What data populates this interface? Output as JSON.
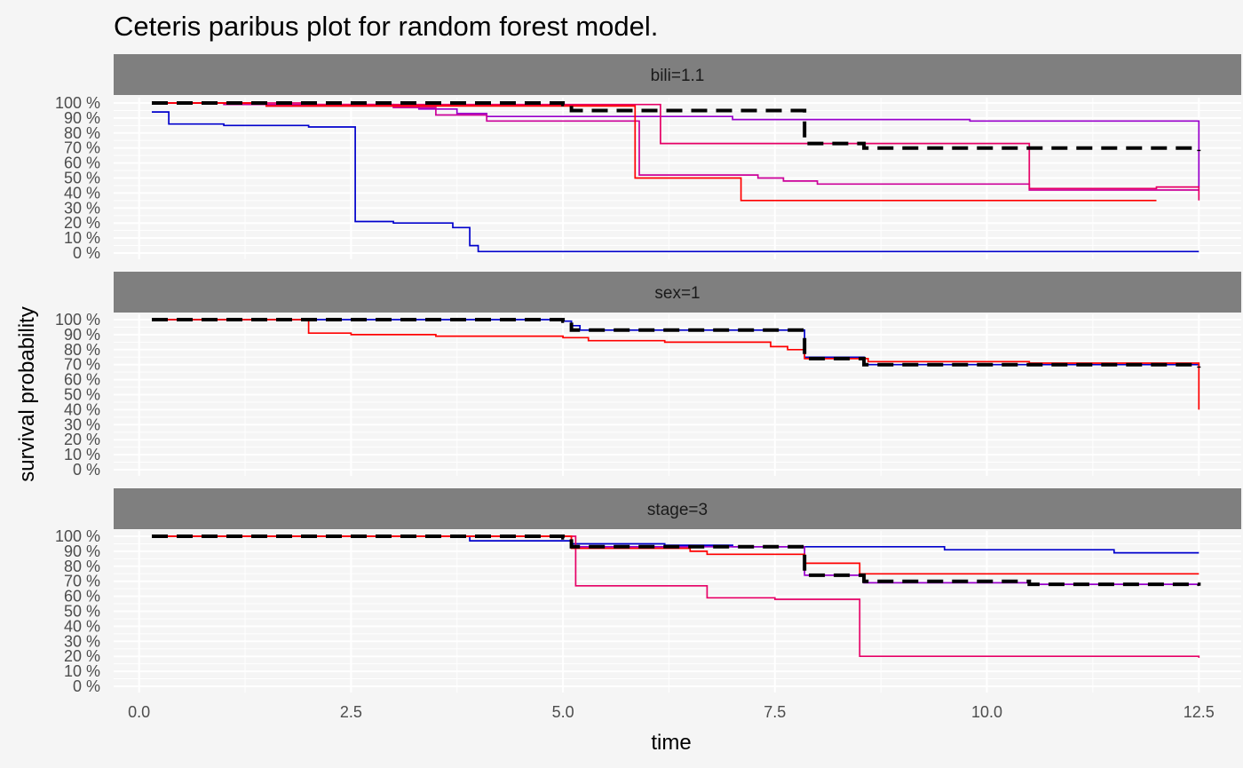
{
  "chart_data": {
    "type": "line",
    "title": "Ceteris paribus plot for random forest model.",
    "xlabel": "time",
    "ylabel": "survival probability",
    "xlim": [
      -0.3,
      13.0
    ],
    "ylim": [
      0,
      1
    ],
    "x_ticks": [
      0,
      2.5,
      5,
      7.5,
      10,
      12.5
    ],
    "x_tick_labels": [
      "0.0",
      "2.5",
      "5.0",
      "7.5",
      "10.0",
      "12.5"
    ],
    "y_ticks": [
      0,
      0.1,
      0.2,
      0.3,
      0.4,
      0.5,
      0.6,
      0.7,
      0.8,
      0.9,
      1.0
    ],
    "y_tick_labels": [
      "0 %",
      "10 %",
      "20 %",
      "30 %",
      "40 %",
      "50 %",
      "60 %",
      "70 %",
      "80 %",
      "90 %",
      "100 %"
    ],
    "legend": "none",
    "colors": {
      "background": "#f5f5f5",
      "strip": "#7f7f7f",
      "grid": "#ffffff",
      "observation": "#000000"
    },
    "panels": [
      {
        "label": "bili=1.1",
        "series": [
          {
            "color": "#0000cc",
            "x": [
              0.15,
              0.35,
              1.0,
              2.0,
              2.55,
              3.0,
              3.7,
              3.9,
              4.0,
              12.5
            ],
            "y": [
              0.94,
              0.86,
              0.85,
              0.84,
              0.21,
              0.2,
              0.17,
              0.05,
              0.01,
              0.01
            ]
          },
          {
            "color": "#9900cc",
            "x": [
              0.15,
              1.5,
              3.3,
              3.75,
              4.1,
              7.0,
              9.8,
              12.5
            ],
            "y": [
              1.0,
              0.98,
              0.96,
              0.93,
              0.91,
              0.89,
              0.88,
              0.44
            ]
          },
          {
            "color": "#cc0099",
            "x": [
              0.15,
              1.0,
              3.0,
              3.5,
              4.1,
              5.9,
              7.3,
              7.6,
              8.0,
              10.5,
              12.5
            ],
            "y": [
              1.0,
              0.99,
              0.97,
              0.92,
              0.88,
              0.52,
              0.5,
              0.48,
              0.46,
              0.42,
              0.42
            ]
          },
          {
            "color": "#e60066",
            "x": [
              0.15,
              2.0,
              5.0,
              6.15,
              10.5,
              11.5,
              12.0,
              12.5
            ],
            "y": [
              1.0,
              0.99,
              0.99,
              0.73,
              0.43,
              0.43,
              0.44,
              0.35
            ]
          },
          {
            "color": "#ff0000",
            "x": [
              0.15,
              1.5,
              5.0,
              5.85,
              7.1,
              12.0
            ],
            "y": [
              1.0,
              0.98,
              0.98,
              0.5,
              0.35,
              0.35
            ]
          },
          {
            "color": "#000000",
            "dashed": true,
            "x": [
              0.15,
              5.0,
              5.1,
              7.85,
              8.55,
              12.5
            ],
            "y": [
              1.0,
              0.99,
              0.95,
              0.73,
              0.7,
              0.68
            ]
          }
        ]
      },
      {
        "label": "sex=1",
        "series": [
          {
            "color": "#0000cc",
            "x": [
              0.15,
              5.0,
              5.1,
              5.2,
              7.85,
              8.55,
              12.5
            ],
            "y": [
              1.0,
              0.99,
              0.96,
              0.93,
              0.75,
              0.7,
              0.68
            ]
          },
          {
            "color": "#ff0000",
            "x": [
              0.15,
              2.0,
              2.5,
              3.5,
              5.0,
              5.3,
              6.2,
              7.45,
              7.65,
              7.85,
              8.6,
              10.5,
              11.5,
              12.0,
              12.5
            ],
            "y": [
              1.0,
              0.91,
              0.9,
              0.89,
              0.88,
              0.86,
              0.85,
              0.82,
              0.8,
              0.74,
              0.72,
              0.71,
              0.71,
              0.71,
              0.4
            ]
          },
          {
            "color": "#000000",
            "dashed": true,
            "x": [
              0.15,
              5.0,
              5.1,
              7.85,
              8.55,
              12.5
            ],
            "y": [
              1.0,
              0.99,
              0.93,
              0.74,
              0.7,
              0.68
            ]
          }
        ]
      },
      {
        "label": "stage=3",
        "series": [
          {
            "color": "#0000cc",
            "x": [
              0.15,
              3.9,
              5.1,
              6.2,
              7.0,
              9.5,
              11.5,
              12.5
            ],
            "y": [
              1.0,
              0.97,
              0.95,
              0.94,
              0.93,
              0.91,
              0.89,
              0.89
            ]
          },
          {
            "color": "#9900cc",
            "x": [
              0.15,
              5.0,
              5.1,
              7.85,
              8.55,
              10.5,
              12.5
            ],
            "y": [
              1.0,
              1.0,
              0.93,
              0.74,
              0.69,
              0.68,
              0.67
            ]
          },
          {
            "color": "#e60066",
            "x": [
              0.15,
              5.0,
              5.15,
              6.7,
              7.5,
              8.5,
              12.0,
              12.5
            ],
            "y": [
              1.0,
              1.0,
              0.67,
              0.59,
              0.58,
              0.2,
              0.2,
              0.19
            ]
          },
          {
            "color": "#ff0000",
            "x": [
              0.15,
              5.0,
              5.1,
              6.5,
              6.7,
              7.85,
              8.5,
              12.5
            ],
            "y": [
              1.0,
              1.0,
              0.92,
              0.9,
              0.88,
              0.82,
              0.75,
              0.75
            ]
          },
          {
            "color": "#000000",
            "dashed": true,
            "x": [
              0.15,
              5.0,
              5.1,
              7.85,
              8.55,
              10.5,
              12.5
            ],
            "y": [
              1.0,
              0.99,
              0.93,
              0.74,
              0.7,
              0.68,
              0.67
            ]
          }
        ]
      }
    ]
  }
}
